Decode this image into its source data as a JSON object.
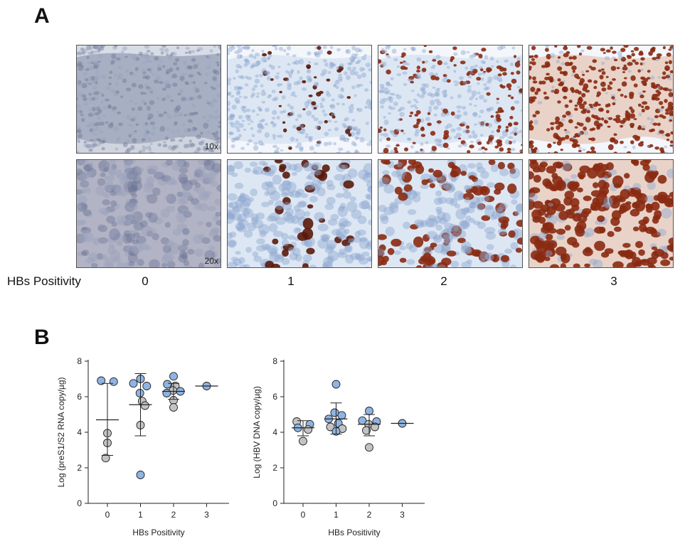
{
  "panel_a": {
    "letter": "A",
    "row_label": "HBs Positivity",
    "scores": [
      "0",
      "1",
      "2",
      "3"
    ],
    "magnifications": [
      "10x",
      "20x"
    ],
    "colors": {
      "hematoxylin": "#8fa6cf",
      "dab": "#8a2a12",
      "negative": "#6f7898"
    }
  },
  "panel_b": {
    "letter": "B"
  },
  "chart_data": [
    {
      "type": "scatter",
      "xlabel": "HBs Positivity",
      "ylabel": "Log (preS1/S2 RNA copy/µg)",
      "categories": [
        "0",
        "1",
        "2",
        "3"
      ],
      "xticks": [
        "0",
        "1",
        "2",
        "3"
      ],
      "yticks": [
        "0",
        "2",
        "4",
        "6",
        "8"
      ],
      "ylim": [
        0,
        8
      ],
      "point_colors": {
        "blue": "#8fb4e3",
        "gray": "#c3c3c3"
      },
      "groups": [
        {
          "x": "0",
          "mean": 4.7,
          "sd_low": 2.7,
          "sd_high": 6.75,
          "points": [
            {
              "y": 6.9,
              "c": "blue",
              "dx": -0.22
            },
            {
              "y": 6.85,
              "c": "blue",
              "dx": 0.22
            },
            {
              "y": 3.95,
              "c": "gray",
              "dx": 0.0
            },
            {
              "y": 3.4,
              "c": "gray",
              "dx": 0.0
            },
            {
              "y": 2.55,
              "c": "gray",
              "dx": -0.06
            }
          ]
        },
        {
          "x": "1",
          "mean": 5.55,
          "sd_low": 3.8,
          "sd_high": 7.3,
          "points": [
            {
              "y": 7.0,
              "c": "blue",
              "dx": 0.0
            },
            {
              "y": 6.75,
              "c": "blue",
              "dx": -0.25
            },
            {
              "y": 6.6,
              "c": "blue",
              "dx": 0.22
            },
            {
              "y": 6.2,
              "c": "blue",
              "dx": -0.02
            },
            {
              "y": 5.75,
              "c": "gray",
              "dx": 0.06
            },
            {
              "y": 5.5,
              "c": "gray",
              "dx": 0.16
            },
            {
              "y": 4.4,
              "c": "gray",
              "dx": 0.0
            },
            {
              "y": 1.6,
              "c": "blue",
              "dx": 0.0
            }
          ]
        },
        {
          "x": "2",
          "mean": 6.3,
          "sd_low": 5.85,
          "sd_high": 6.75,
          "points": [
            {
              "y": 7.15,
              "c": "blue",
              "dx": 0.0
            },
            {
              "y": 6.7,
              "c": "blue",
              "dx": -0.22
            },
            {
              "y": 6.6,
              "c": "gray",
              "dx": 0.06
            },
            {
              "y": 6.35,
              "c": "gray",
              "dx": -0.02
            },
            {
              "y": 6.3,
              "c": "blue",
              "dx": 0.24
            },
            {
              "y": 6.2,
              "c": "blue",
              "dx": -0.24
            },
            {
              "y": 5.8,
              "c": "gray",
              "dx": 0.0
            },
            {
              "y": 5.4,
              "c": "gray",
              "dx": 0.0
            }
          ]
        },
        {
          "x": "3",
          "mean": 6.6,
          "sd_low": null,
          "sd_high": null,
          "points": [
            {
              "y": 6.6,
              "c": "blue",
              "dx": 0.0
            }
          ]
        }
      ]
    },
    {
      "type": "scatter",
      "xlabel": "HBs Positivity",
      "ylabel": "Log (HBV DNA copy/µg)",
      "categories": [
        "0",
        "1",
        "2",
        "3"
      ],
      "xticks": [
        "0",
        "1",
        "2",
        "3"
      ],
      "yticks": [
        "0",
        "2",
        "4",
        "6",
        "8"
      ],
      "ylim": [
        0,
        8
      ],
      "point_colors": {
        "blue": "#8fb4e3",
        "gray": "#c3c3c3"
      },
      "groups": [
        {
          "x": "0",
          "mean": 4.25,
          "sd_low": 3.8,
          "sd_high": 4.65,
          "points": [
            {
              "y": 4.6,
              "c": "gray",
              "dx": -0.22
            },
            {
              "y": 4.45,
              "c": "blue",
              "dx": 0.24
            },
            {
              "y": 4.25,
              "c": "blue",
              "dx": -0.18
            },
            {
              "y": 4.15,
              "c": "gray",
              "dx": 0.18
            },
            {
              "y": 3.5,
              "c": "gray",
              "dx": 0.0
            }
          ]
        },
        {
          "x": "1",
          "mean": 4.75,
          "sd_low": 3.9,
          "sd_high": 5.65,
          "points": [
            {
              "y": 6.7,
              "c": "blue",
              "dx": 0.0
            },
            {
              "y": 5.1,
              "c": "blue",
              "dx": -0.05
            },
            {
              "y": 4.95,
              "c": "blue",
              "dx": 0.2
            },
            {
              "y": 4.75,
              "c": "blue",
              "dx": -0.26
            },
            {
              "y": 4.5,
              "c": "blue",
              "dx": 0.08
            },
            {
              "y": 4.3,
              "c": "gray",
              "dx": -0.2
            },
            {
              "y": 4.2,
              "c": "gray",
              "dx": 0.22
            },
            {
              "y": 4.05,
              "c": "blue",
              "dx": 0.0
            }
          ]
        },
        {
          "x": "2",
          "mean": 4.45,
          "sd_low": 3.8,
          "sd_high": 5.0,
          "points": [
            {
              "y": 5.2,
              "c": "blue",
              "dx": 0.0
            },
            {
              "y": 4.65,
              "c": "blue",
              "dx": -0.24
            },
            {
              "y": 4.6,
              "c": "blue",
              "dx": 0.26
            },
            {
              "y": 4.45,
              "c": "gray",
              "dx": -0.02
            },
            {
              "y": 4.3,
              "c": "gray",
              "dx": 0.2
            },
            {
              "y": 4.1,
              "c": "gray",
              "dx": -0.1
            },
            {
              "y": 3.15,
              "c": "gray",
              "dx": 0.0
            }
          ]
        },
        {
          "x": "3",
          "mean": 4.5,
          "sd_low": null,
          "sd_high": null,
          "points": [
            {
              "y": 4.5,
              "c": "blue",
              "dx": 0.0
            }
          ]
        }
      ]
    }
  ]
}
